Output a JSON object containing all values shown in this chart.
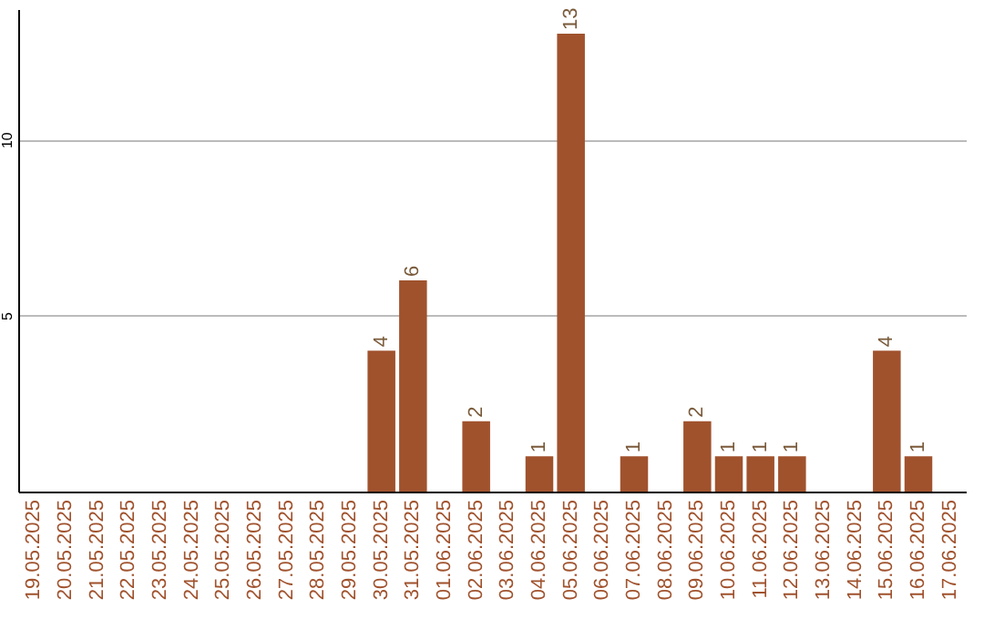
{
  "chart_data": {
    "type": "bar",
    "categories": [
      "19.05.2025",
      "20.05.2025",
      "21.05.2025",
      "22.05.2025",
      "23.05.2025",
      "24.05.2025",
      "25.05.2025",
      "26.05.2025",
      "27.05.2025",
      "28.05.2025",
      "29.05.2025",
      "30.05.2025",
      "31.05.2025",
      "01.06.2025",
      "02.06.2025",
      "03.06.2025",
      "04.06.2025",
      "05.06.2025",
      "06.06.2025",
      "07.06.2025",
      "08.06.2025",
      "09.06.2025",
      "10.06.2025",
      "11.06.2025",
      "12.06.2025",
      "13.06.2025",
      "14.06.2025",
      "15.06.2025",
      "16.06.2025",
      "17.06.2025"
    ],
    "values": [
      0,
      0,
      0,
      0,
      0,
      0,
      0,
      0,
      0,
      0,
      0,
      4,
      6,
      0,
      2,
      0,
      1,
      13,
      0,
      1,
      0,
      2,
      1,
      1,
      1,
      0,
      0,
      4,
      1,
      0
    ],
    "value_labels": [
      null,
      null,
      null,
      null,
      null,
      null,
      null,
      null,
      null,
      null,
      null,
      "4",
      "6",
      null,
      "2",
      null,
      "1",
      "13",
      null,
      "1",
      null,
      "2",
      "1",
      "1",
      "1",
      null,
      null,
      "4",
      "1",
      null
    ],
    "color": "#a0522d",
    "ylim": [
      0,
      13.7
    ],
    "yticks": [
      5,
      10
    ],
    "grid": "y"
  }
}
